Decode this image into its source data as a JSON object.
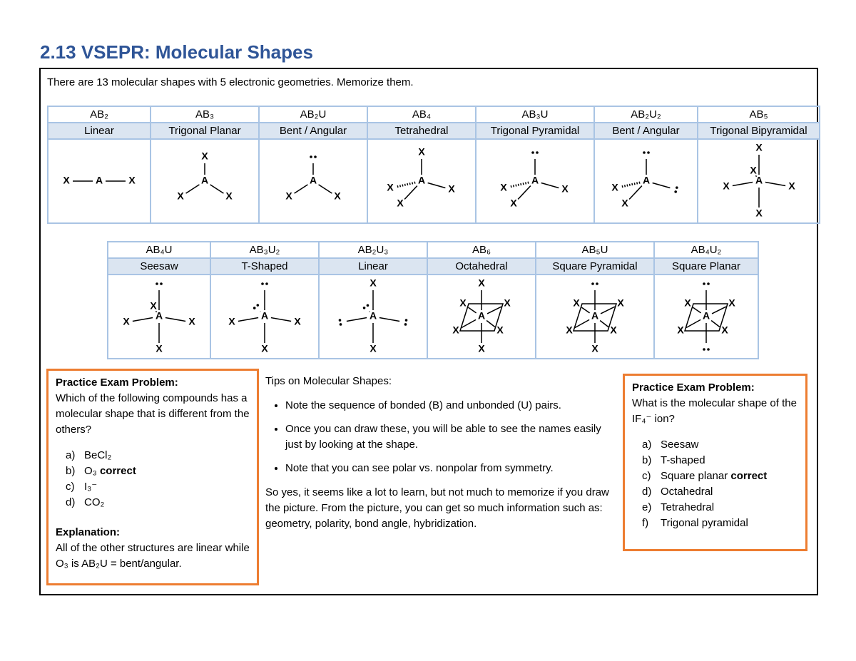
{
  "header": {
    "title": "2.13 VSEPR: Molecular Shapes"
  },
  "intro": "There are 13 molecular shapes with 5 electronic geometries. Memorize them.",
  "diagram_labels": {
    "center": "A",
    "ligand": "X"
  },
  "tables": [
    {
      "shapes": [
        {
          "formula": "AB₂",
          "name": "Linear"
        },
        {
          "formula": "AB₃",
          "name": "Trigonal Planar"
        },
        {
          "formula": "AB₂U",
          "name": "Bent / Angular"
        },
        {
          "formula": "AB₄",
          "name": "Tetrahedral"
        },
        {
          "formula": "AB₃U",
          "name": "Trigonal Pyramidal"
        },
        {
          "formula": "AB₂U₂",
          "name": "Bent / Angular"
        },
        {
          "formula": "AB₅",
          "name": "Trigonal Bipyramidal"
        }
      ]
    },
    {
      "shapes": [
        {
          "formula": "AB₄U",
          "name": "Seesaw"
        },
        {
          "formula": "AB₃U₂",
          "name": "T-Shaped"
        },
        {
          "formula": "AB₂U₃",
          "name": "Linear"
        },
        {
          "formula": "AB₆",
          "name": "Octahedral"
        },
        {
          "formula": "AB₅U",
          "name": "Square Pyramidal"
        },
        {
          "formula": "AB₄U₂",
          "name": "Square Planar"
        }
      ]
    }
  ],
  "left_problem": {
    "heading": "Practice Exam Problem:",
    "question": "Which of the following compounds has a molecular shape that is different from the others?",
    "options": [
      {
        "label": "a)",
        "text": "BeCl₂"
      },
      {
        "label": "b)",
        "text": "O₃",
        "mark": "correct"
      },
      {
        "label": "c)",
        "text": "I₃⁻"
      },
      {
        "label": "d)",
        "text": "CO₂"
      }
    ],
    "explanation_heading": "Explanation:",
    "explanation": "All of the other structures are linear while O₃ is AB₂U = bent/angular."
  },
  "tips": {
    "heading": "Tips on Molecular Shapes:",
    "items": [
      "Note the sequence of bonded (B) and unbonded (U) pairs.",
      "Once you can draw these, you will be able to see the names easily just by looking at the shape.",
      "Note that you can see polar vs. nonpolar from symmetry."
    ],
    "closing": "So yes, it seems like a lot to learn, but not much to memorize if you draw the picture. From the picture, you can get so much information such as: geometry, polarity, bond angle, hybridization."
  },
  "right_problem": {
    "heading": "Practice Exam Problem:",
    "question": "What is the molecular shape of the IF₄⁻ ion?",
    "options": [
      {
        "label": "a)",
        "text": "Seesaw"
      },
      {
        "label": "b)",
        "text": "T-shaped"
      },
      {
        "label": "c)",
        "text": "Square planar",
        "mark": "correct"
      },
      {
        "label": "d)",
        "text": "Octahedral"
      },
      {
        "label": "e)",
        "text": "Tetrahedral"
      },
      {
        "label": "f)",
        "text": "Trigonal pyramidal"
      }
    ]
  }
}
